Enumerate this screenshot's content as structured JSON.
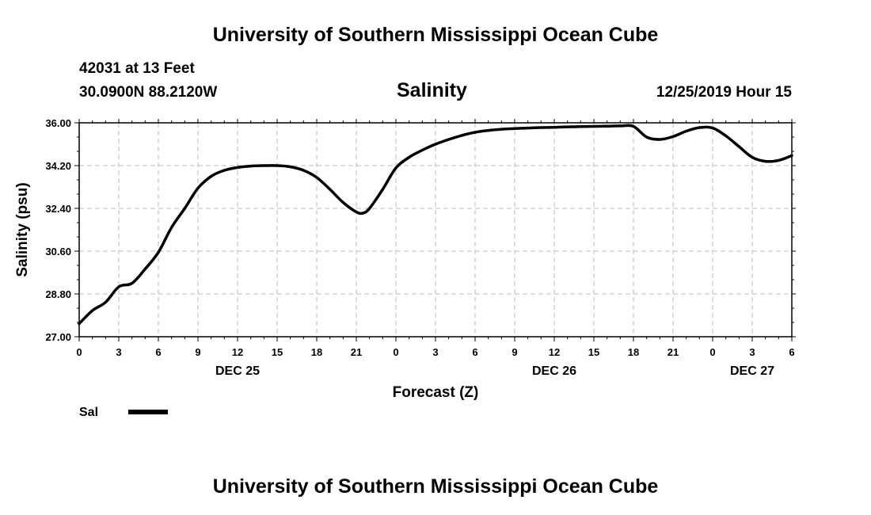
{
  "header": {
    "title": "University of Southern Mississippi Ocean Cube",
    "station": "42031 at 13 Feet",
    "location": "30.0900N 88.2120W",
    "variable": "Salinity",
    "datetime": "12/25/2019 Hour 15"
  },
  "footer": {
    "title": "University of Southern Mississippi Ocean Cube"
  },
  "chart_data": {
    "type": "line",
    "title": "Salinity",
    "xlabel": "Forecast (Z)",
    "ylabel": "Salinity (psu)",
    "xlim": [
      0,
      54
    ],
    "ylim": [
      27.0,
      36.0
    ],
    "x_ticks": [
      0,
      3,
      6,
      9,
      12,
      15,
      18,
      21,
      24,
      27,
      30,
      33,
      36,
      39,
      42,
      45,
      48,
      51,
      54
    ],
    "x_tick_labels": [
      "0",
      "3",
      "6",
      "9",
      "12",
      "15",
      "18",
      "21",
      "0",
      "3",
      "6",
      "9",
      "12",
      "15",
      "18",
      "21",
      "0",
      "3",
      "6"
    ],
    "y_ticks": [
      27.0,
      28.8,
      30.6,
      32.4,
      34.2,
      36.0
    ],
    "y_tick_labels": [
      "27.00",
      "28.80",
      "30.60",
      "32.40",
      "34.20",
      "36.00"
    ],
    "day_labels": [
      {
        "x": 12,
        "label": "DEC 25"
      },
      {
        "x": 36,
        "label": "DEC 26"
      },
      {
        "x": 51,
        "label": "DEC 27"
      }
    ],
    "grid": true,
    "legend": "bottom-left",
    "series": [
      {
        "name": "Sal",
        "color": "#000000",
        "x": [
          0,
          1,
          2,
          3,
          4,
          5,
          6,
          7,
          8,
          9,
          10,
          11,
          12,
          13,
          14,
          15,
          16,
          17,
          18,
          19,
          20,
          21,
          21.5,
          22,
          23,
          24,
          25,
          26,
          27,
          28,
          29,
          30,
          31,
          32,
          33,
          34,
          35,
          36,
          37,
          38,
          39,
          40,
          41,
          42,
          43,
          44,
          45,
          46,
          47,
          48,
          49,
          50,
          51,
          52,
          53,
          54
        ],
        "values": [
          27.55,
          28.1,
          28.45,
          29.1,
          29.25,
          29.85,
          30.55,
          31.6,
          32.4,
          33.25,
          33.75,
          34.0,
          34.12,
          34.18,
          34.2,
          34.2,
          34.15,
          34.0,
          33.7,
          33.2,
          32.65,
          32.25,
          32.2,
          32.4,
          33.2,
          34.1,
          34.55,
          34.85,
          35.1,
          35.3,
          35.47,
          35.6,
          35.68,
          35.73,
          35.76,
          35.78,
          35.8,
          35.81,
          35.83,
          35.84,
          35.85,
          35.86,
          35.87,
          35.85,
          35.4,
          35.3,
          35.42,
          35.65,
          35.8,
          35.78,
          35.45,
          35.0,
          34.55,
          34.38,
          34.42,
          34.62
        ]
      }
    ]
  }
}
